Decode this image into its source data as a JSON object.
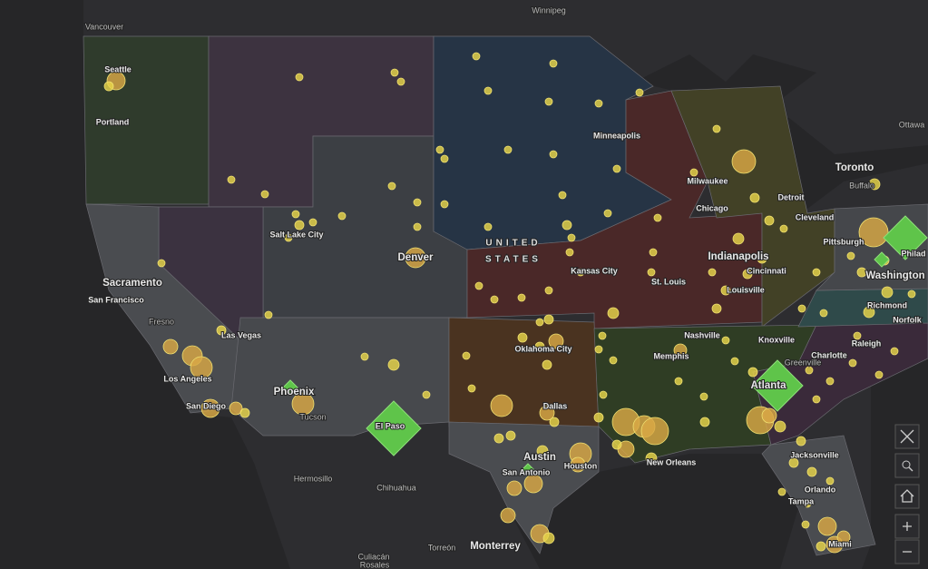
{
  "map": {
    "country_label": [
      "UNITED",
      "STATES"
    ],
    "cities": [
      "Vancouver",
      "Winnipeg",
      "Seattle",
      "Portland",
      "Ottawa",
      "Minneapolis",
      "Toronto",
      "Milwaukee",
      "Buffalo",
      "Detroit",
      "Chicago",
      "Cleveland",
      "Salt Lake City",
      "Denver",
      "Kansas City",
      "Pittsburgh",
      "Indianapolis",
      "Washington",
      "Cincinnati",
      "Sacramento",
      "San Francisco",
      "St. Louis",
      "Louisville",
      "Richmond",
      "Norfolk",
      "Fresno",
      "Las Vegas",
      "Nashville",
      "Knoxville",
      "Raleigh",
      "Oklahoma City",
      "Charlotte",
      "Memphis",
      "Greenville",
      "Los Angeles",
      "Phoenix",
      "Atlanta",
      "San Diego",
      "Dallas",
      "Tucson",
      "El Paso",
      "Jacksonville",
      "Austin",
      "Hermosillo",
      "Houston",
      "New Orleans",
      "San Antonio",
      "Chihuahua",
      "Orlando",
      "Tampa",
      "Monterrey",
      "Torreón",
      "Miami",
      "Culiacán",
      "Rosales",
      "Philad"
    ]
  }
}
